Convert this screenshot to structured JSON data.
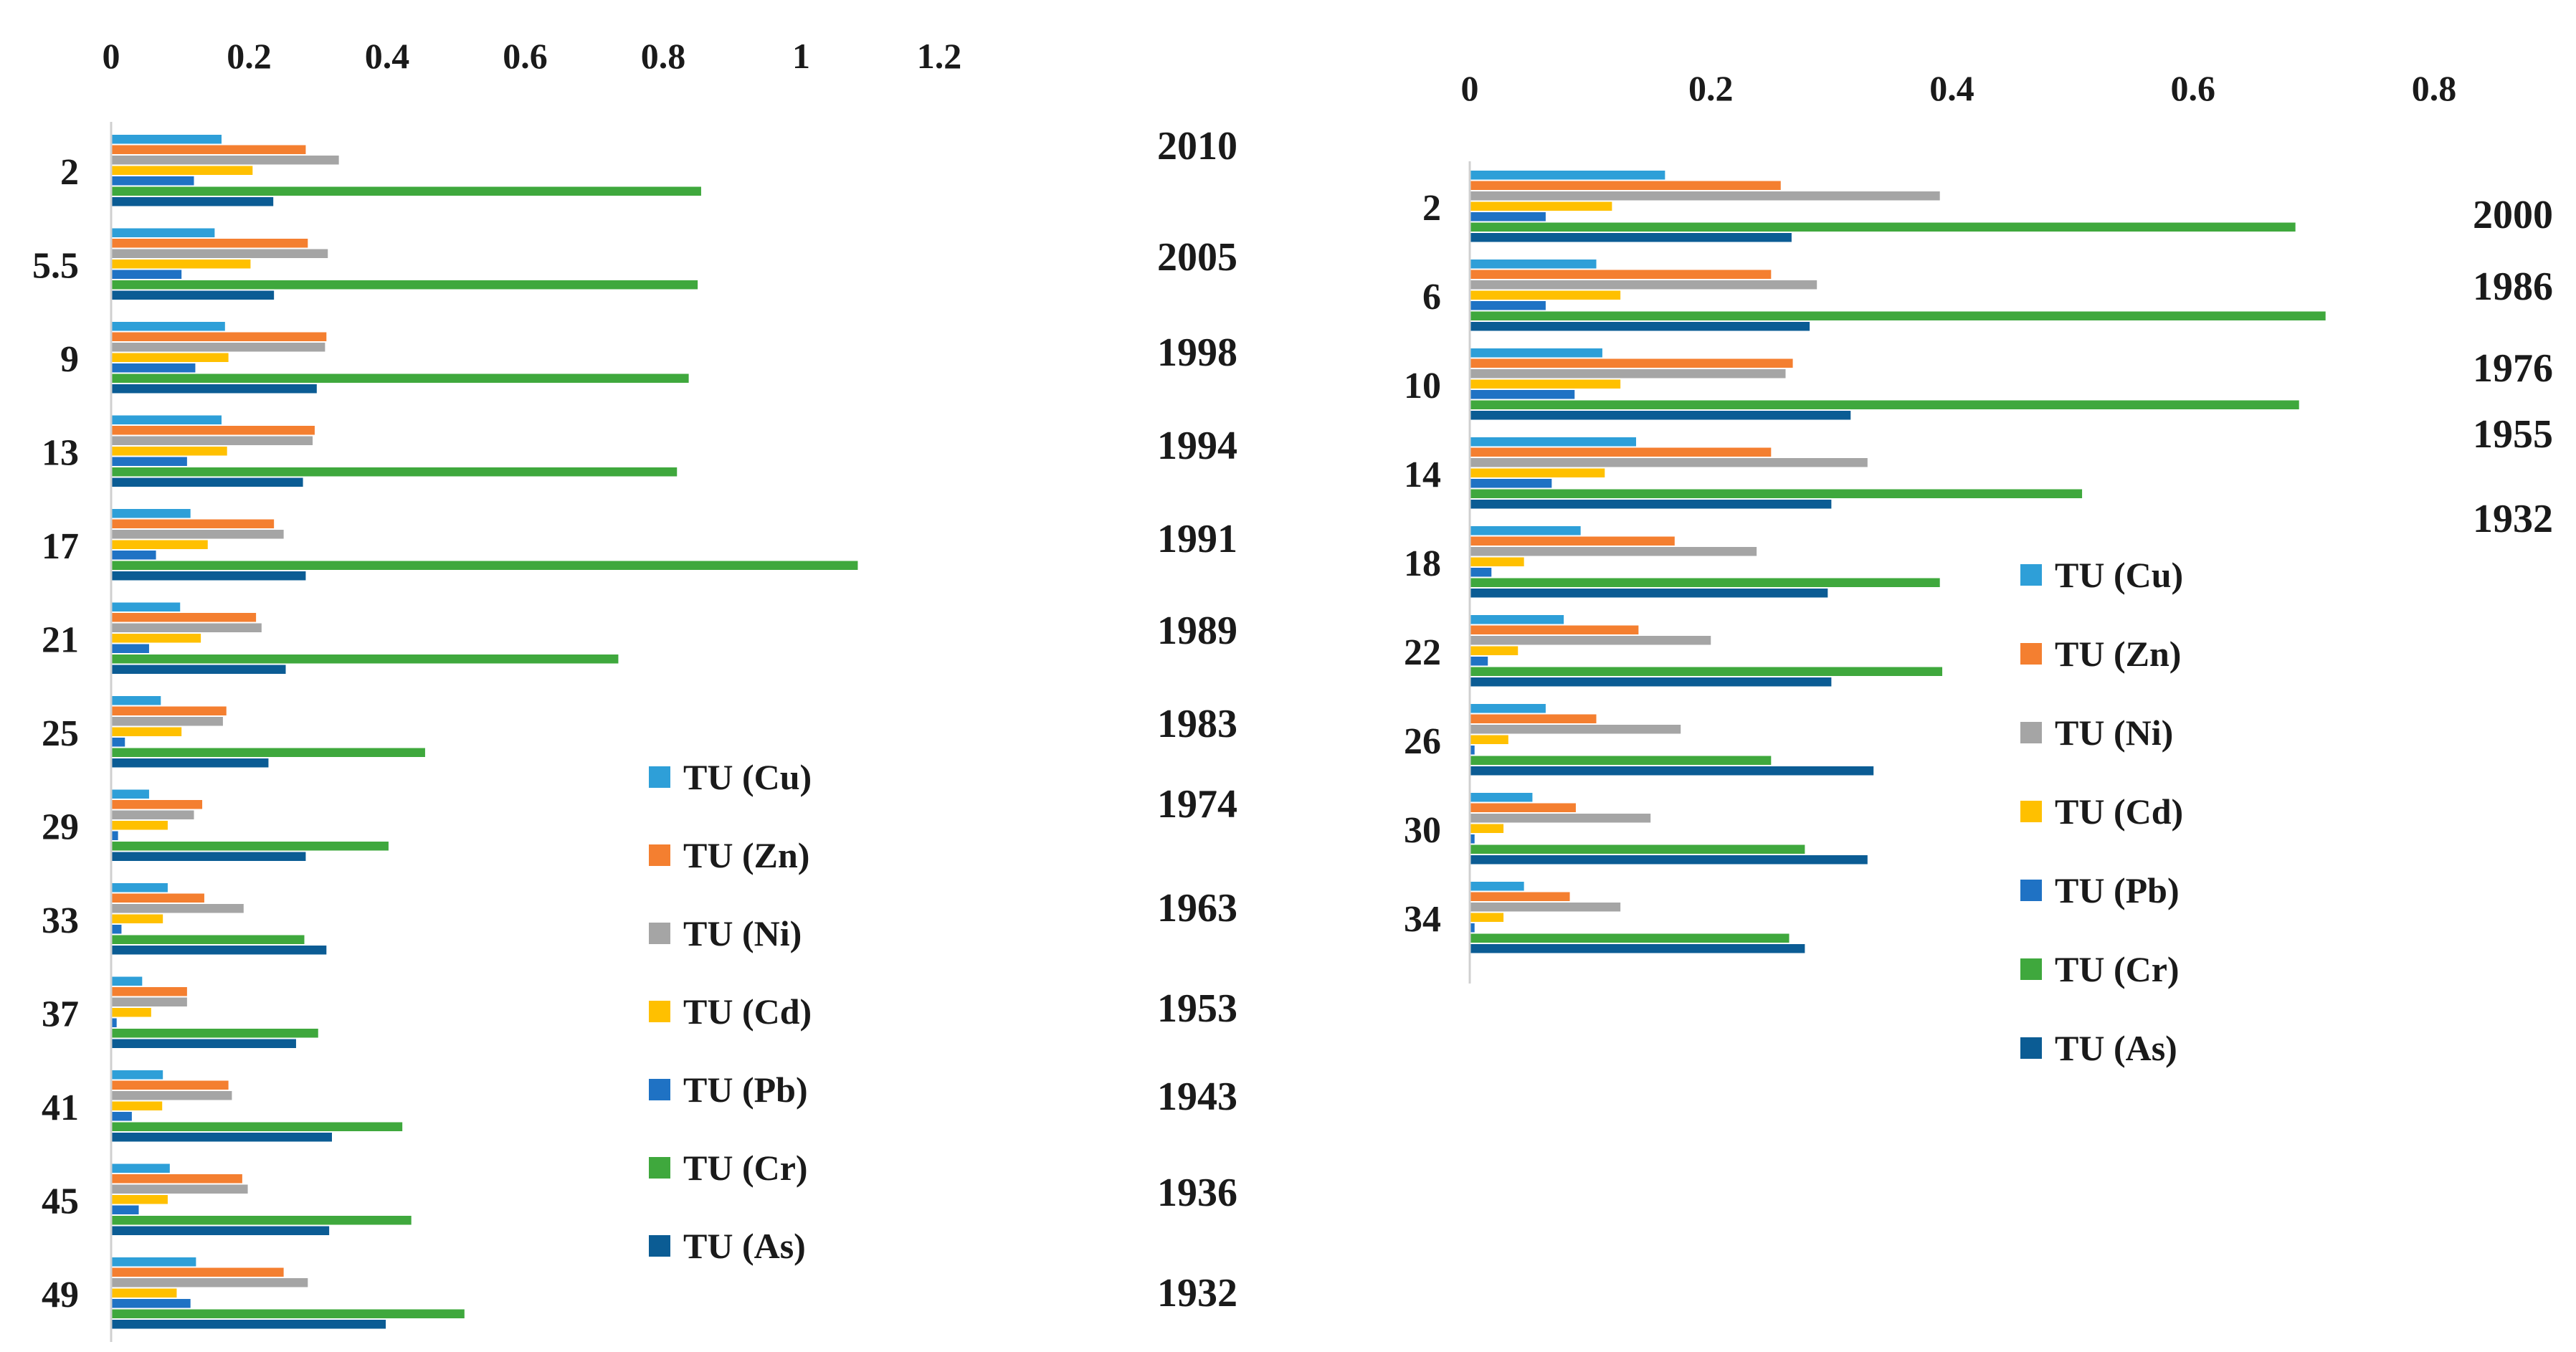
{
  "chart_data": [
    {
      "type": "bar",
      "orientation": "horizontal",
      "title": "",
      "xlim": [
        0,
        1.2
      ],
      "x_ticks": [
        "0",
        "0.2",
        "0.4",
        "0.6",
        "0.8",
        "1",
        "1.2"
      ],
      "categories": [
        "2",
        "5.5",
        "9",
        "13",
        "17",
        "21",
        "25",
        "29",
        "33",
        "37",
        "41",
        "45",
        "49"
      ],
      "years": [
        "2010",
        "2005",
        "1998",
        "1994",
        "1991",
        "1989",
        "1983",
        "1974",
        "1963",
        "1953",
        "1943",
        "1936",
        "1932"
      ],
      "legend_position": "lower-right",
      "series": [
        {
          "name": "TU (Cu)",
          "color": "#2e9fd8",
          "values": [
            0.16,
            0.15,
            0.165,
            0.16,
            0.115,
            0.1,
            0.072,
            0.055,
            0.082,
            0.045,
            0.075,
            0.085,
            0.123
          ]
        },
        {
          "name": "TU (Zn)",
          "color": "#f47f30",
          "values": [
            0.282,
            0.285,
            0.312,
            0.295,
            0.236,
            0.21,
            0.167,
            0.132,
            0.135,
            0.11,
            0.17,
            0.19,
            0.25
          ]
        },
        {
          "name": "TU (Ni)",
          "color": "#a5a5a5",
          "values": [
            0.33,
            0.314,
            0.31,
            0.292,
            0.25,
            0.218,
            0.162,
            0.12,
            0.192,
            0.11,
            0.175,
            0.198,
            0.285
          ]
        },
        {
          "name": "TU (Cd)",
          "color": "#ffc000",
          "values": [
            0.205,
            0.202,
            0.17,
            0.168,
            0.14,
            0.13,
            0.102,
            0.082,
            0.075,
            0.058,
            0.074,
            0.082,
            0.095
          ]
        },
        {
          "name": "TU (Pb)",
          "color": "#1f72c4",
          "values": [
            0.12,
            0.102,
            0.122,
            0.11,
            0.065,
            0.055,
            0.02,
            0.01,
            0.015,
            0.008,
            0.03,
            0.04,
            0.115
          ]
        },
        {
          "name": "TU (Cr)",
          "color": "#3fa83d",
          "values": [
            0.855,
            0.85,
            0.837,
            0.82,
            1.082,
            0.735,
            0.455,
            0.402,
            0.28,
            0.3,
            0.422,
            0.435,
            0.512
          ]
        },
        {
          "name": "TU (As)",
          "color": "#0b5c94",
          "values": [
            0.235,
            0.236,
            0.298,
            0.278,
            0.282,
            0.253,
            0.228,
            0.282,
            0.312,
            0.268,
            0.32,
            0.316,
            0.398
          ]
        }
      ]
    },
    {
      "type": "bar",
      "orientation": "horizontal",
      "title": "",
      "xlim": [
        0,
        0.8
      ],
      "x_ticks": [
        "0",
        "0.2",
        "0.4",
        "0.6",
        "0.8"
      ],
      "categories": [
        "2",
        "6",
        "10",
        "14",
        "18",
        "22",
        "26",
        "30",
        "34"
      ],
      "years": [
        "2000",
        "1986",
        "1976",
        "1955",
        "1932"
      ],
      "legend_position": "lower-right",
      "series": [
        {
          "name": "TU (Cu)",
          "color": "#2e9fd8",
          "values": [
            0.162,
            0.105,
            0.11,
            0.138,
            0.092,
            0.078,
            0.063,
            0.052,
            0.045
          ]
        },
        {
          "name": "TU (Zn)",
          "color": "#f47f30",
          "values": [
            0.258,
            0.25,
            0.268,
            0.25,
            0.17,
            0.14,
            0.105,
            0.088,
            0.083
          ]
        },
        {
          "name": "TU (Ni)",
          "color": "#a5a5a5",
          "values": [
            0.39,
            0.288,
            0.262,
            0.33,
            0.238,
            0.2,
            0.175,
            0.15,
            0.125
          ]
        },
        {
          "name": "TU (Cd)",
          "color": "#ffc000",
          "values": [
            0.118,
            0.125,
            0.125,
            0.112,
            0.045,
            0.04,
            0.032,
            0.028,
            0.028
          ]
        },
        {
          "name": "TU (Pb)",
          "color": "#1f72c4",
          "values": [
            0.063,
            0.063,
            0.087,
            0.068,
            0.018,
            0.015,
            0.004,
            0.004,
            0.004
          ]
        },
        {
          "name": "TU (Cr)",
          "color": "#3fa83d",
          "values": [
            0.685,
            0.71,
            0.688,
            0.508,
            0.39,
            0.392,
            0.25,
            0.278,
            0.265
          ]
        },
        {
          "name": "TU (As)",
          "color": "#0b5c94",
          "values": [
            0.267,
            0.282,
            0.316,
            0.3,
            0.297,
            0.3,
            0.335,
            0.33,
            0.278
          ]
        }
      ]
    }
  ]
}
